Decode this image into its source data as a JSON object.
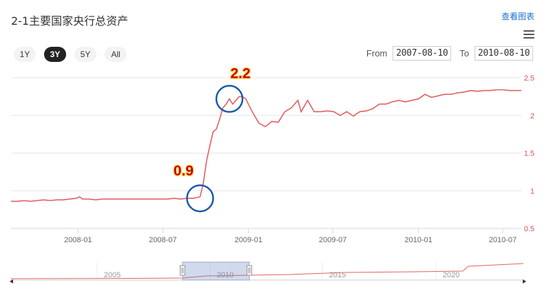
{
  "title": "2-1主要国家央行总资产",
  "view_chart_link": "查看图表",
  "range_buttons": [
    {
      "label": "1Y",
      "active": false
    },
    {
      "label": "3Y",
      "active": true
    },
    {
      "label": "5Y",
      "active": false
    },
    {
      "label": "All",
      "active": false
    }
  ],
  "date_range": {
    "from_label": "From",
    "from_value": "2007-08-10",
    "to_label": "To",
    "to_value": "2010-08-10"
  },
  "colors": {
    "line": "#e06060",
    "annotation_circle": "#1a5aa8",
    "annotation_text": "#cc0000",
    "annotation_halo": "#ffe27a",
    "axis_label": "#e05050"
  },
  "navigator": {
    "year_labels": [
      "2005",
      "2010",
      "2015",
      "2020"
    ]
  },
  "chart_data": {
    "type": "line",
    "title": "",
    "xlabel": "",
    "ylabel": "",
    "ylim": [
      0.5,
      2.5
    ],
    "y_ticks": [
      "0.5",
      "1",
      "1.5",
      "2",
      "2.5"
    ],
    "x_ticks": [
      "2008-01",
      "2008-07",
      "2009-01",
      "2009-07",
      "2010-01",
      "2010-07"
    ],
    "grid": true,
    "y_axis_side": "right",
    "series": [
      {
        "x": [
          "2007-08-10",
          "2007-08-24",
          "2007-09-07",
          "2007-09-21",
          "2007-10-05",
          "2007-10-19",
          "2007-11-02",
          "2007-11-16",
          "2007-11-30",
          "2007-12-14",
          "2007-12-28",
          "2008-01-04",
          "2008-01-11",
          "2008-01-25",
          "2008-02-08",
          "2008-02-22",
          "2008-03-07",
          "2008-03-21",
          "2008-04-04",
          "2008-04-18",
          "2008-05-02",
          "2008-05-16",
          "2008-05-30",
          "2008-06-13",
          "2008-06-27",
          "2008-07-11",
          "2008-07-25",
          "2008-08-08",
          "2008-08-22",
          "2008-09-05",
          "2008-09-12",
          "2008-09-19",
          "2008-09-26",
          "2008-10-03",
          "2008-10-10",
          "2008-10-17",
          "2008-10-24",
          "2008-10-31",
          "2008-11-07",
          "2008-11-14",
          "2008-11-21",
          "2008-11-28",
          "2008-12-05",
          "2008-12-12",
          "2008-12-19",
          "2008-12-26",
          "2009-01-09",
          "2009-01-23",
          "2009-02-06",
          "2009-02-20",
          "2009-03-06",
          "2009-03-20",
          "2009-04-03",
          "2009-04-17",
          "2009-04-24",
          "2009-05-08",
          "2009-05-22",
          "2009-06-05",
          "2009-06-19",
          "2009-07-03",
          "2009-07-17",
          "2009-07-31",
          "2009-08-14",
          "2009-08-28",
          "2009-09-11",
          "2009-09-25",
          "2009-10-09",
          "2009-10-23",
          "2009-11-06",
          "2009-11-20",
          "2009-12-04",
          "2009-12-18",
          "2010-01-01",
          "2010-01-15",
          "2010-01-29",
          "2010-02-12",
          "2010-02-26",
          "2010-03-12",
          "2010-03-26",
          "2010-04-09",
          "2010-04-23",
          "2010-05-07",
          "2010-05-21",
          "2010-06-04",
          "2010-06-18",
          "2010-07-02",
          "2010-07-16",
          "2010-07-30",
          "2010-08-10"
        ],
        "values": [
          0.86,
          0.86,
          0.87,
          0.86,
          0.87,
          0.88,
          0.87,
          0.88,
          0.88,
          0.89,
          0.9,
          0.92,
          0.89,
          0.89,
          0.88,
          0.89,
          0.89,
          0.89,
          0.89,
          0.89,
          0.89,
          0.89,
          0.89,
          0.89,
          0.89,
          0.89,
          0.9,
          0.89,
          0.9,
          0.9,
          0.91,
          0.92,
          1.1,
          1.4,
          1.6,
          1.78,
          1.82,
          1.95,
          2.1,
          2.15,
          2.22,
          2.15,
          2.2,
          2.25,
          2.25,
          2.22,
          2.05,
          1.9,
          1.85,
          1.92,
          1.91,
          2.05,
          2.1,
          2.2,
          2.05,
          2.2,
          2.05,
          2.05,
          2.06,
          2.05,
          2.0,
          2.05,
          1.99,
          2.05,
          2.06,
          2.09,
          2.15,
          2.15,
          2.18,
          2.2,
          2.18,
          2.2,
          2.22,
          2.28,
          2.24,
          2.26,
          2.28,
          2.28,
          2.3,
          2.31,
          2.33,
          2.32,
          2.33,
          2.33,
          2.34,
          2.34,
          2.33,
          2.33,
          2.33
        ]
      }
    ],
    "annotations": [
      {
        "label": "0.9",
        "x": "2008-09-19",
        "y": 0.9
      },
      {
        "label": "2.2",
        "x": "2008-11-21",
        "y": 2.22
      }
    ]
  }
}
